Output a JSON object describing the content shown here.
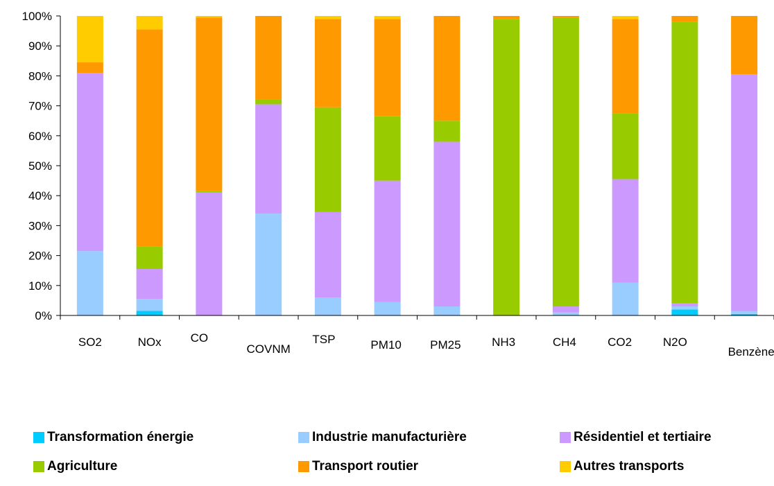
{
  "chart_data": {
    "type": "bar",
    "stacked": true,
    "percent": true,
    "categories": [
      "SO2",
      "NOx",
      "CO",
      "COVNM",
      "TSP",
      "PM10",
      "PM25",
      "NH3",
      "CH4",
      "CO2",
      "N2O",
      "Benzène"
    ],
    "ylim": [
      0,
      100
    ],
    "yticks": [
      "0%",
      "10%",
      "20%",
      "30%",
      "40%",
      "50%",
      "60%",
      "70%",
      "80%",
      "90%",
      "100%"
    ],
    "grid": false,
    "legend_position": "bottom",
    "series": [
      {
        "name": "Transformation énergie",
        "color": "#00CCFF",
        "values": [
          0,
          1.5,
          0,
          0,
          0,
          0,
          0,
          0,
          0,
          0,
          2,
          0.5
        ]
      },
      {
        "name": "Industrie manufacturière",
        "color": "#99CCFF",
        "values": [
          21.5,
          4,
          0,
          34,
          6,
          4.5,
          3,
          0,
          1,
          11,
          1,
          1
        ]
      },
      {
        "name": "Résidentiel et tertiaire",
        "color": "#CC99FF",
        "values": [
          59.5,
          10,
          41,
          36.5,
          28.5,
          40.5,
          55,
          0,
          2,
          34.5,
          1,
          79
        ]
      },
      {
        "name": "Agriculture",
        "color": "#99CC00",
        "values": [
          0,
          7.5,
          0.5,
          1.5,
          35,
          21.5,
          7,
          99,
          96.5,
          22,
          94,
          0
        ]
      },
      {
        "name": "Transport routier",
        "color": "#FF9900",
        "values": [
          3.5,
          72.5,
          58,
          28,
          29.5,
          32.5,
          35,
          1,
          0.5,
          31.5,
          2,
          19.5
        ]
      },
      {
        "name": "Autres transports",
        "color": "#FFCC00",
        "values": [
          15.5,
          4.5,
          0.5,
          0,
          1,
          1,
          0,
          0,
          0,
          1,
          0,
          0
        ]
      }
    ]
  }
}
